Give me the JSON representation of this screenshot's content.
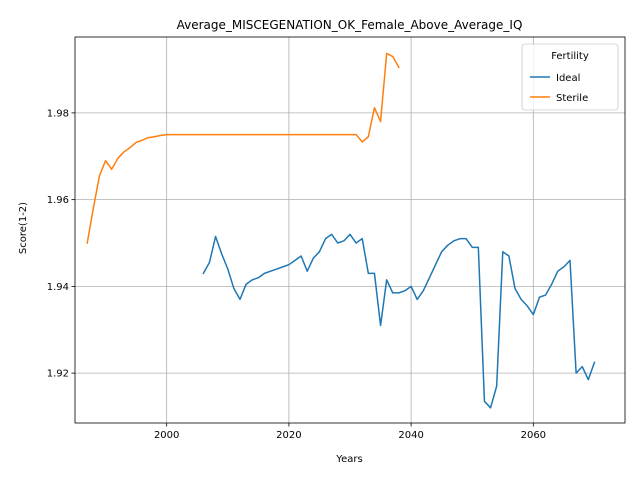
{
  "chart_data": {
    "type": "line",
    "title": "Average_MISCEGENATION_OK_Female_Above_Average_IQ",
    "xlabel": "Years",
    "ylabel": "Score(1-2)",
    "xlim": [
      1985,
      2075
    ],
    "ylim": [
      1.9085,
      1.9975
    ],
    "x_ticks": [
      2000,
      2020,
      2040,
      2060
    ],
    "y_ticks": [
      1.92,
      1.94,
      1.96,
      1.98
    ],
    "grid": true,
    "legend": {
      "title": "Fertility",
      "placement": "top-right"
    },
    "series": [
      {
        "name": "Ideal",
        "color": "#1f77b4",
        "x": [
          2006,
          2007,
          2008,
          2009,
          2010,
          2011,
          2012,
          2013,
          2014,
          2015,
          2016,
          2017,
          2018,
          2019,
          2020,
          2021,
          2022,
          2023,
          2024,
          2025,
          2026,
          2027,
          2028,
          2029,
          2030,
          2031,
          2032,
          2033,
          2034,
          2035,
          2036,
          2037,
          2038,
          2039,
          2040,
          2041,
          2042,
          2043,
          2044,
          2045,
          2046,
          2047,
          2048,
          2049,
          2050,
          2051,
          2052,
          2053,
          2054,
          2055,
          2056,
          2057,
          2058,
          2059,
          2060,
          2061,
          2062,
          2063,
          2064,
          2065,
          2066,
          2067,
          2068,
          2069,
          2070
        ],
        "values": [
          1.943,
          1.9455,
          1.9515,
          1.9475,
          1.944,
          1.9395,
          1.937,
          1.9405,
          1.9415,
          1.942,
          1.943,
          1.9435,
          1.944,
          1.9445,
          1.945,
          1.946,
          1.947,
          1.9435,
          1.9465,
          1.948,
          1.951,
          1.952,
          1.95,
          1.9505,
          1.952,
          1.95,
          1.951,
          1.943,
          1.943,
          1.931,
          1.9415,
          1.9385,
          1.9385,
          1.939,
          1.94,
          1.937,
          1.939,
          1.942,
          1.945,
          1.948,
          1.9495,
          1.9505,
          1.951,
          1.951,
          1.949,
          1.949,
          1.9135,
          1.912,
          1.917,
          1.948,
          1.947,
          1.9395,
          1.937,
          1.9355,
          1.9335,
          1.9375,
          1.938,
          1.9405,
          1.9435,
          1.9445,
          1.946,
          1.92,
          1.9215,
          1.9185,
          1.9225
        ]
      },
      {
        "name": "Sterile",
        "color": "#ff7f0e",
        "x": [
          1987,
          1988,
          1989,
          1990,
          1991,
          1992,
          1993,
          1994,
          1995,
          1996,
          1997,
          1998,
          1999,
          2000,
          2001,
          2002,
          2003,
          2004,
          2005,
          2006,
          2007,
          2008,
          2009,
          2010,
          2011,
          2012,
          2013,
          2014,
          2015,
          2016,
          2017,
          2018,
          2019,
          2020,
          2021,
          2022,
          2023,
          2024,
          2025,
          2026,
          2027,
          2028,
          2029,
          2030,
          2031,
          2032,
          2033,
          2034,
          2035,
          2036,
          2037,
          2038
        ],
        "values": [
          1.95,
          1.958,
          1.9655,
          1.969,
          1.967,
          1.9695,
          1.971,
          1.972,
          1.9732,
          1.9737,
          1.9743,
          1.9745,
          1.9748,
          1.975,
          1.975,
          1.975,
          1.975,
          1.975,
          1.975,
          1.975,
          1.975,
          1.975,
          1.975,
          1.975,
          1.975,
          1.975,
          1.975,
          1.975,
          1.975,
          1.975,
          1.975,
          1.975,
          1.975,
          1.975,
          1.975,
          1.975,
          1.975,
          1.975,
          1.975,
          1.975,
          1.975,
          1.975,
          1.975,
          1.975,
          1.975,
          1.9733,
          1.9745,
          1.9812,
          1.978,
          1.9937,
          1.993,
          1.9905
        ]
      }
    ]
  }
}
